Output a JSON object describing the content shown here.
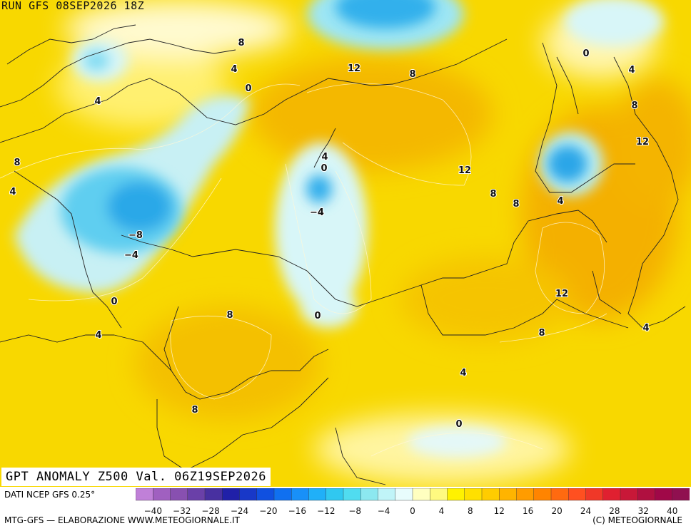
{
  "run_label": "RUN GFS 08SEP2026 18Z",
  "title": "GPT ANOMALY Z500 Val. 06Z19SEP2026",
  "source": "DATI NCEP GFS 0.25°",
  "credit_left": "MTG-GFS — ELABORAZIONE WWW.METEOGIORNALE.IT",
  "credit_right": "(C) METEOGIORNALE",
  "legend": {
    "ticks": [
      "−40",
      "−32",
      "−28",
      "−24",
      "−20",
      "−16",
      "−12",
      "−8",
      "−4",
      "0",
      "4",
      "8",
      "12",
      "16",
      "20",
      "24",
      "28",
      "32",
      "40"
    ],
    "colors": [
      "#c080d8",
      "#a060c0",
      "#8850b0",
      "#6a40a8",
      "#4830a0",
      "#2020a8",
      "#1838c8",
      "#1050e0",
      "#1070f0",
      "#1890f8",
      "#20b0f8",
      "#30c8f0",
      "#50dcf0",
      "#8ce8f0",
      "#c0f4f8",
      "#e8fcfc",
      "#ffffc0",
      "#fffa80",
      "#fff200",
      "#ffe000",
      "#ffcc00",
      "#ffb400",
      "#ff9c00",
      "#ff8400",
      "#ff6a10",
      "#ff5020",
      "#f03828",
      "#e02030",
      "#c81838",
      "#b01040",
      "#a00848",
      "#901050"
    ]
  },
  "map": {
    "contour_labels": [
      "8",
      "4",
      "0",
      "4",
      "8",
      "4",
      "12",
      "8",
      "0",
      "4",
      "8",
      "12",
      "4",
      "0",
      "−4",
      "12",
      "8",
      "8",
      "4",
      "−8",
      "−4",
      "0",
      "8",
      "4",
      "12",
      "8",
      "4",
      "4",
      "8",
      "0"
    ]
  },
  "colors": {
    "base": "#f8dc00",
    "warm": "#f6c000",
    "cold_core": "#1ea6e8",
    "pale": "#e4f6f8"
  }
}
